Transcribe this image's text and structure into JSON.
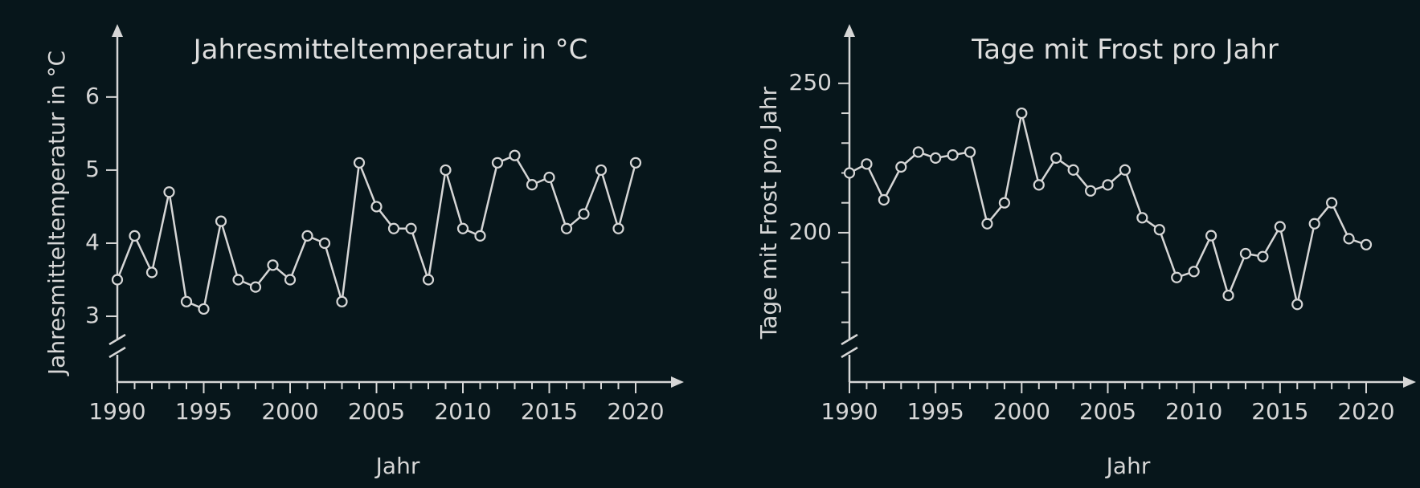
{
  "chart_data": [
    {
      "type": "line",
      "title": "Jahresmitteltemperatur in °C",
      "xlabel": "Jahr",
      "ylabel": "Jahresmitteltemperatur in °C",
      "xlim": [
        1990,
        2020
      ],
      "ylim": [
        2.1,
        6.8
      ],
      "x_ticks": [
        1990,
        1995,
        2000,
        2005,
        2010,
        2015,
        2020
      ],
      "y_ticks": [
        3,
        4,
        5,
        6
      ],
      "axis_break": true,
      "grid": false,
      "series": [
        {
          "x": [
            1990,
            1991,
            1992,
            1993,
            1994,
            1995,
            1996,
            1997,
            1998,
            1999,
            2000,
            2001,
            2002,
            2003,
            2004,
            2005,
            2006,
            2007,
            2008,
            2009,
            2010,
            2011,
            2012,
            2013,
            2014,
            2015,
            2016,
            2017,
            2018,
            2019,
            2020
          ],
          "values": [
            3.5,
            4.1,
            3.6,
            4.7,
            3.2,
            3.1,
            4.3,
            3.5,
            3.4,
            3.7,
            3.5,
            4.1,
            4.0,
            3.2,
            5.1,
            4.5,
            4.2,
            4.2,
            3.5,
            5.0,
            4.2,
            4.1,
            5.1,
            5.2,
            4.8,
            4.9,
            4.2,
            4.4,
            5.0,
            4.2,
            5.1
          ]
        }
      ]
    },
    {
      "type": "line",
      "title": "Tage mit Frost pro Jahr",
      "xlabel": "Jahr",
      "ylabel": "Tage mit Frost pro Jahr",
      "xlim": [
        1990,
        2020
      ],
      "ylim": [
        150,
        265
      ],
      "x_ticks": [
        1990,
        1995,
        2000,
        2005,
        2010,
        2015,
        2020
      ],
      "y_ticks": [
        200,
        250
      ],
      "y_minor_ticks": [
        170,
        180,
        190,
        210,
        220,
        230,
        240
      ],
      "axis_break": true,
      "grid": false,
      "series": [
        {
          "x": [
            1990,
            1991,
            1992,
            1993,
            1994,
            1995,
            1996,
            1997,
            1998,
            1999,
            2000,
            2001,
            2002,
            2003,
            2004,
            2005,
            2006,
            2007,
            2008,
            2009,
            2010,
            2011,
            2012,
            2013,
            2014,
            2015,
            2016,
            2017,
            2018,
            2019,
            2020
          ],
          "values": [
            220,
            223,
            211,
            222,
            227,
            225,
            226,
            227,
            203,
            210,
            240,
            216,
            225,
            221,
            214,
            216,
            221,
            205,
            201,
            185,
            187,
            199,
            179,
            193,
            192,
            202,
            176,
            203,
            210,
            198,
            196
          ]
        }
      ]
    }
  ]
}
